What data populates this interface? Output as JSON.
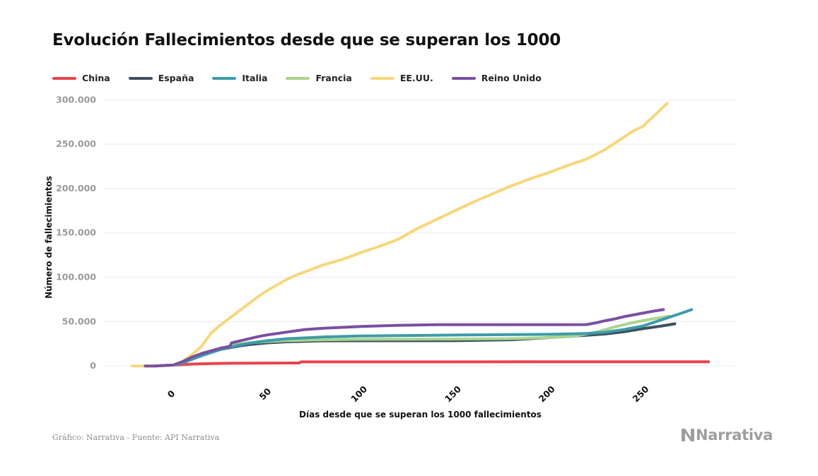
{
  "title": "Evolución Fallecimientos desde que se superan los 1000",
  "legend": [
    {
      "name": "China",
      "color": "#e8434e"
    },
    {
      "name": "España",
      "color": "#3d5160"
    },
    {
      "name": "Italia",
      "color": "#3d9ba9"
    },
    {
      "name": "Francia",
      "color": "#a8d58e"
    },
    {
      "name": "EE.UU.",
      "color": "#f7d77a"
    },
    {
      "name": "Reino Unido",
      "color": "#7b4fa0"
    }
  ],
  "source": "Gráfico: Narrativa - Fuente: API Narrativa",
  "brand": "Narrativa",
  "chart_data": {
    "type": "line",
    "title": "Evolución Fallecimientos desde que se superan los 1000",
    "xlabel": "Días desde que se superan los 1000 fallecimientos",
    "ylabel": "Número de fallecimientos",
    "xlim": [
      -37,
      300
    ],
    "ylim": [
      -15000,
      305000
    ],
    "xticks": [
      0,
      50,
      100,
      150,
      200,
      250
    ],
    "xtick_labels": [
      "0",
      "50",
      "100",
      "150",
      "200",
      "250"
    ],
    "yticks": [
      0,
      50000,
      100000,
      150000,
      200000,
      250000,
      300000
    ],
    "ytick_labels": [
      "0",
      "50.000",
      "100.000",
      "150.000",
      "200.000",
      "250.000",
      "300.000"
    ],
    "grid": "horizontal",
    "legend_position": "top-left",
    "series": [
      {
        "name": "China",
        "color": "#e8434e",
        "x": [
          0,
          10,
          20,
          30,
          40,
          50,
          60,
          67,
          68,
          100,
          150,
          200,
          250,
          285
        ],
        "y": [
          1000,
          2100,
          2700,
          3000,
          3100,
          3200,
          3300,
          3300,
          4600,
          4600,
          4600,
          4700,
          4700,
          4700
        ]
      },
      {
        "name": "España",
        "color": "#3d5160",
        "x": [
          -10,
          0,
          5,
          10,
          15,
          20,
          25,
          30,
          35,
          40,
          50,
          60,
          80,
          100,
          150,
          180,
          200,
          220,
          230,
          240,
          250,
          260,
          267
        ],
        "y": [
          0,
          1000,
          4000,
          8000,
          12000,
          15500,
          18500,
          20500,
          22500,
          24000,
          26000,
          27200,
          28300,
          28400,
          28500,
          29500,
          32000,
          34500,
          36000,
          38500,
          42000,
          45000,
          47500
        ]
      },
      {
        "name": "Italia",
        "color": "#3d9ba9",
        "x": [
          -10,
          0,
          5,
          10,
          15,
          20,
          25,
          30,
          35,
          40,
          50,
          60,
          80,
          100,
          150,
          200,
          220,
          230,
          240,
          250,
          260,
          270,
          276
        ],
        "y": [
          0,
          1000,
          3500,
          7500,
          11500,
          15000,
          18500,
          21000,
          23500,
          25500,
          28500,
          30500,
          32700,
          33800,
          34800,
          35600,
          36500,
          38000,
          41000,
          45000,
          52000,
          59000,
          63500
        ]
      },
      {
        "name": "Francia",
        "color": "#a8d58e",
        "x": [
          -10,
          0,
          5,
          10,
          15,
          20,
          25,
          30,
          35,
          40,
          50,
          60,
          80,
          100,
          150,
          180,
          200,
          215,
          225,
          235,
          245,
          255,
          264
        ],
        "y": [
          0,
          1000,
          4000,
          8000,
          12000,
          16000,
          19500,
          22500,
          24500,
          26000,
          27500,
          28500,
          29500,
          30000,
          30300,
          30800,
          32000,
          34000,
          38000,
          44000,
          49000,
          53000,
          56000
        ]
      },
      {
        "name": "EE.UU.",
        "color": "#f7d77a",
        "x": [
          -22,
          -15,
          -10,
          -5,
          0,
          5,
          10,
          15,
          20,
          25,
          30,
          35,
          40,
          45,
          50,
          55,
          60,
          65,
          70,
          75,
          80,
          90,
          100,
          110,
          120,
          130,
          140,
          150,
          160,
          170,
          180,
          190,
          200,
          210,
          220,
          230,
          240,
          245,
          250,
          255,
          260,
          263
        ],
        "y": [
          0,
          0,
          0,
          200,
          1000,
          5000,
          13000,
          22000,
          37000,
          46000,
          54000,
          62000,
          70000,
          78000,
          85000,
          91000,
          97000,
          102000,
          106000,
          110000,
          114000,
          120000,
          128000,
          135000,
          143000,
          155000,
          165000,
          175000,
          185000,
          194000,
          203000,
          211000,
          218000,
          226000,
          233000,
          244000,
          258000,
          265000,
          270000,
          280000,
          290000,
          296000
        ]
      },
      {
        "name": "Reino Unido",
        "color": "#7b4fa0",
        "x": [
          -15,
          -10,
          0,
          5,
          10,
          15,
          20,
          25,
          30,
          31,
          35,
          40,
          45,
          50,
          55,
          60,
          65,
          70,
          80,
          90,
          100,
          120,
          140,
          160,
          180,
          200,
          220,
          225,
          230,
          235,
          240,
          245,
          250,
          255,
          261
        ],
        "y": [
          0,
          0,
          1000,
          5000,
          10000,
          14000,
          17000,
          20000,
          22000,
          26000,
          28000,
          30500,
          33000,
          35000,
          36500,
          38000,
          39500,
          41000,
          42500,
          43500,
          44500,
          45800,
          46500,
          46500,
          46500,
          46500,
          46600,
          48500,
          51000,
          53000,
          55500,
          57500,
          59500,
          61500,
          63500
        ]
      }
    ]
  }
}
